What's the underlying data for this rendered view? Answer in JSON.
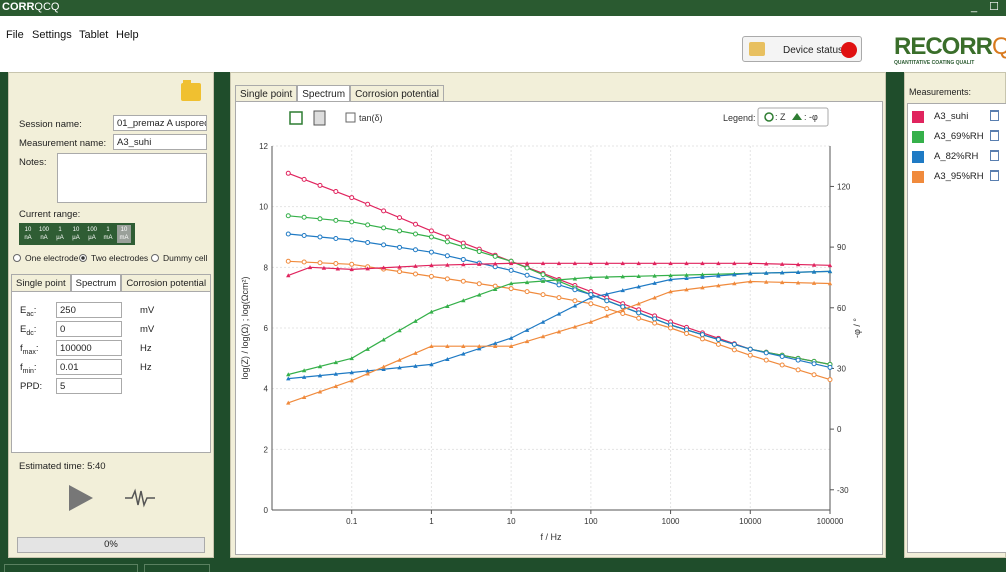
{
  "app": {
    "logo_bold": "CORR",
    "logo_thin": "QCQ",
    "window_controls": [
      "_",
      "☐"
    ]
  },
  "menu": [
    "File",
    "Settings",
    "Tablet",
    "Help"
  ],
  "device_status": {
    "label": "Device status:",
    "color": "#e01010"
  },
  "brand": {
    "name_bold": "RECORR",
    "name_thin": "QCQ",
    "tagline": "QUANTITATIVE COATING QUALIT"
  },
  "left": {
    "session_label": "Session name:",
    "session_value": "01_premaz A usporec",
    "measurement_label": "Measurement name:",
    "measurement_value": "A3_suhi",
    "notes_label": "Notes:",
    "current_range_label": "Current range:",
    "ranges": [
      {
        "top": "10",
        "bottom": "nA"
      },
      {
        "top": "100",
        "bottom": "nA"
      },
      {
        "top": "1",
        "bottom": "µA"
      },
      {
        "top": "10",
        "bottom": "µA"
      },
      {
        "top": "100",
        "bottom": "µA"
      },
      {
        "top": "1",
        "bottom": "mA"
      },
      {
        "top": "10",
        "bottom": "mA"
      }
    ],
    "electrode_options": [
      "One electrode",
      "Two electrodes",
      "Dummy cell"
    ],
    "electrode_selected": "Two electrodes",
    "subtabs": [
      "Single point",
      "Spectrum",
      "Corrosion potential"
    ],
    "subtab_active": "Spectrum",
    "params": [
      {
        "label_main": "E",
        "label_sub": "ac",
        "value": "250",
        "unit": "mV"
      },
      {
        "label_main": "E",
        "label_sub": "dc",
        "value": "0",
        "unit": "mV"
      },
      {
        "label_main": "f",
        "label_sub": "max",
        "value": "100000",
        "unit": "Hz"
      },
      {
        "label_main": "f",
        "label_sub": "min",
        "value": "0.01",
        "unit": "Hz"
      },
      {
        "label_main": "PPD",
        "label_sub": "",
        "value": "5",
        "unit": ""
      }
    ],
    "estimated_time": "Estimated time: 5:40",
    "progress": "0%"
  },
  "center": {
    "tabs": [
      "Single point",
      "Spectrum",
      "Corrosion potential"
    ],
    "tab_active": "Spectrum",
    "tan_label": "tan(δ)",
    "legend_label": "Legend:",
    "legend_z": ": Z",
    "legend_phi": ": -φ"
  },
  "measurements": {
    "header": "Measurements:",
    "items": [
      {
        "name": "A3_suhi",
        "color": "#e0245e"
      },
      {
        "name": "A3_69%RH",
        "color": "#35b04a"
      },
      {
        "name": "A_82%RH",
        "color": "#1f7ac4"
      },
      {
        "name": "A3_95%RH",
        "color": "#f08a3c"
      }
    ]
  },
  "chart_data": {
    "type": "line",
    "xlabel": "f / Hz",
    "ylabel": "log(Z) / log(Ω) ; log(Ωcm²)",
    "y2label": "-φ / °",
    "x_scale": "log",
    "xlim": [
      0.01,
      100000
    ],
    "ylim": [
      0,
      12
    ],
    "y2lim": [
      -40,
      140
    ],
    "x_ticks": [
      "0.1",
      "1",
      "10",
      "100",
      "1000",
      "10000",
      "100000"
    ],
    "y_ticks": [
      "0",
      "2",
      "4",
      "6",
      "8",
      "10",
      "12"
    ],
    "y2_ticks": [
      "-30",
      "0",
      "30",
      "60",
      "90",
      "120"
    ],
    "grid": true,
    "series": [
      {
        "name": "A3_suhi",
        "kind": "Z",
        "color": "#e0245e",
        "x": [
          0.016,
          0.1,
          1,
          10,
          100,
          1000,
          10000,
          100000
        ],
        "y": [
          11.1,
          10.3,
          9.2,
          8.2,
          7.2,
          6.2,
          5.3,
          4.8
        ]
      },
      {
        "name": "A3_69%RH",
        "kind": "Z",
        "color": "#35b04a",
        "x": [
          0.016,
          0.1,
          1,
          10,
          100,
          1000,
          10000,
          100000
        ],
        "y": [
          9.7,
          9.5,
          9.0,
          8.2,
          7.1,
          6.1,
          5.3,
          4.8
        ]
      },
      {
        "name": "A_82%RH",
        "kind": "Z",
        "color": "#1f7ac4",
        "x": [
          0.016,
          0.1,
          1,
          10,
          100,
          1000,
          10000,
          100000
        ],
        "y": [
          9.1,
          8.9,
          8.5,
          7.9,
          7.1,
          6.1,
          5.3,
          4.7
        ]
      },
      {
        "name": "A3_95%RH",
        "kind": "Z",
        "color": "#f08a3c",
        "x": [
          0.016,
          0.1,
          1,
          10,
          100,
          1000,
          10000,
          100000
        ],
        "y": [
          8.2,
          8.1,
          7.7,
          7.3,
          6.8,
          6.0,
          5.1,
          4.3
        ]
      },
      {
        "name": "A3_suhi",
        "kind": "phi",
        "color": "#e0245e",
        "x": [
          0.016,
          0.03,
          0.1,
          1,
          10,
          100,
          1000,
          10000,
          100000
        ],
        "y": [
          76,
          80,
          79,
          81,
          82,
          82,
          82,
          82,
          81
        ]
      },
      {
        "name": "A3_69%RH",
        "kind": "phi",
        "color": "#35b04a",
        "x": [
          0.016,
          0.1,
          1,
          10,
          100,
          1000,
          10000,
          100000
        ],
        "y": [
          27,
          35,
          58,
          72,
          75,
          76,
          77,
          78
        ]
      },
      {
        "name": "A_82%RH",
        "kind": "phi",
        "color": "#1f7ac4",
        "x": [
          0.016,
          0.1,
          1,
          10,
          100,
          1000,
          10000,
          100000
        ],
        "y": [
          25,
          28,
          32,
          45,
          65,
          74,
          77,
          78
        ]
      },
      {
        "name": "A3_95%RH",
        "kind": "phi",
        "color": "#f08a3c",
        "x": [
          0.016,
          0.1,
          1,
          10,
          100,
          1000,
          10000,
          100000
        ],
        "y": [
          13,
          24,
          41,
          41,
          53,
          68,
          73,
          72
        ]
      }
    ]
  }
}
